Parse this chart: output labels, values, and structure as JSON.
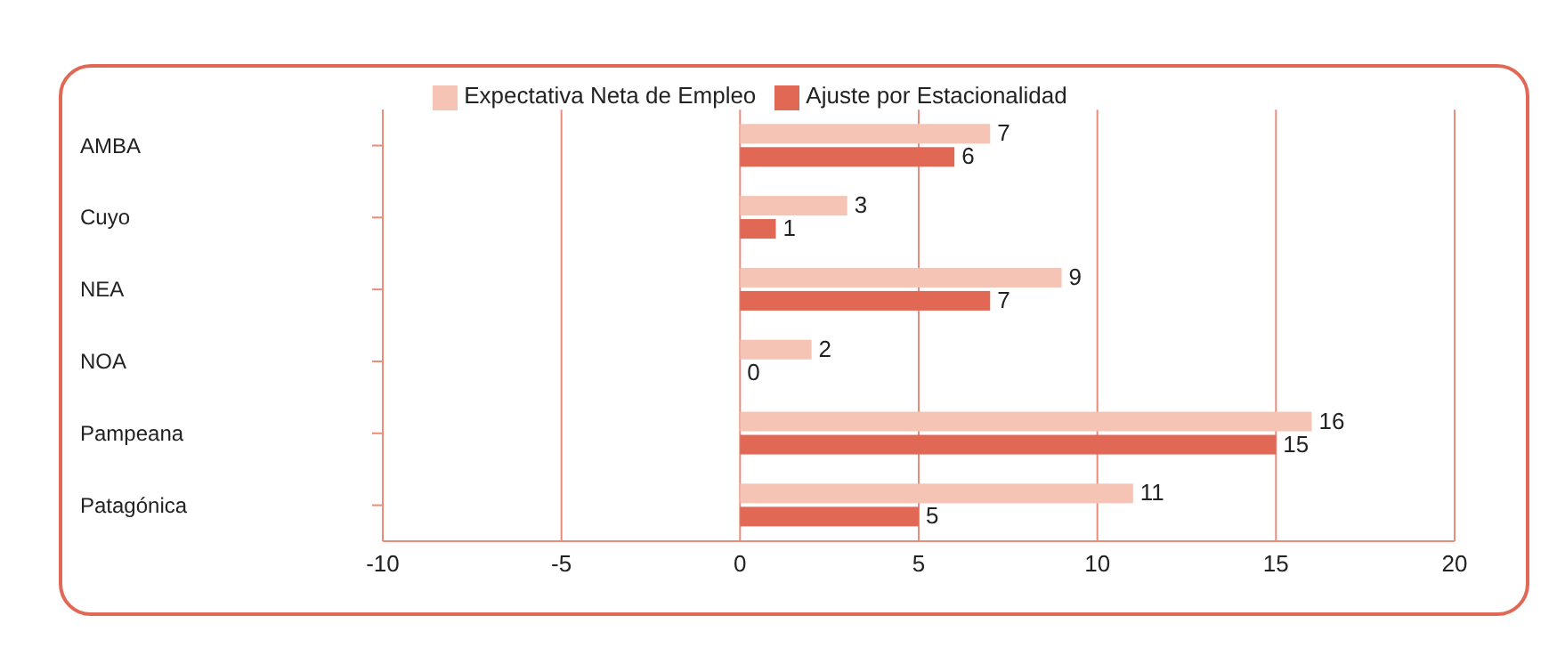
{
  "chart_data": {
    "type": "bar",
    "orientation": "horizontal",
    "categories": [
      "AMBA",
      "Cuyo",
      "NEA",
      "NOA",
      "Pampeana",
      "Patagónica"
    ],
    "series": [
      {
        "name": "Expectativa Neta de Empleo",
        "color": "#f5c4b4",
        "values": [
          7,
          3,
          9,
          2,
          16,
          11
        ]
      },
      {
        "name": "Ajuste por Estacionalidad",
        "color": "#e26856",
        "values": [
          6,
          1,
          7,
          0,
          15,
          5
        ]
      }
    ],
    "xlim": [
      -10,
      20
    ],
    "xticks": [
      -10,
      -5,
      0,
      5,
      10,
      15,
      20
    ],
    "grid": "x",
    "legend": "top",
    "data_labels": true
  }
}
